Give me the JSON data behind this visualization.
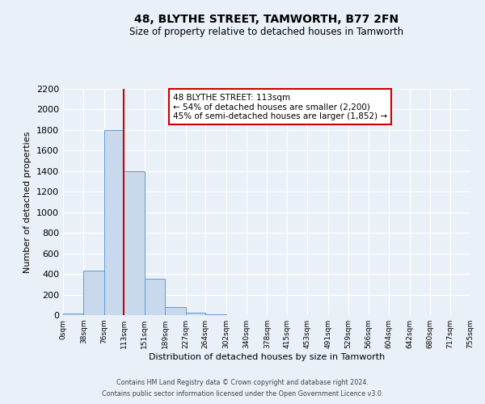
{
  "title": "48, BLYTHE STREET, TAMWORTH, B77 2FN",
  "subtitle": "Size of property relative to detached houses in Tamworth",
  "xlabel": "Distribution of detached houses by size in Tamworth",
  "ylabel": "Number of detached properties",
  "bin_labels": [
    "0sqm",
    "38sqm",
    "76sqm",
    "113sqm",
    "151sqm",
    "189sqm",
    "227sqm",
    "264sqm",
    "302sqm",
    "340sqm",
    "378sqm",
    "415sqm",
    "453sqm",
    "491sqm",
    "529sqm",
    "566sqm",
    "604sqm",
    "642sqm",
    "680sqm",
    "717sqm",
    "755sqm"
  ],
  "bin_edges": [
    0,
    38,
    76,
    113,
    151,
    189,
    227,
    264,
    302,
    340,
    378,
    415,
    453,
    491,
    529,
    566,
    604,
    642,
    680,
    717,
    755
  ],
  "bar_heights": [
    15,
    430,
    1800,
    1400,
    350,
    80,
    25,
    10,
    0,
    0,
    0,
    0,
    0,
    0,
    0,
    0,
    0,
    0,
    0,
    0
  ],
  "bar_color": "#c9d9ed",
  "bar_edge_color": "#5b9bd5",
  "vline_x": 113,
  "vline_color": "#cc0000",
  "ylim": [
    0,
    2200
  ],
  "yticks": [
    0,
    200,
    400,
    600,
    800,
    1000,
    1200,
    1400,
    1600,
    1800,
    2000,
    2200
  ],
  "annotation_box_text": "48 BLYTHE STREET: 113sqm\n← 54% of detached houses are smaller (2,200)\n45% of semi-detached houses are larger (1,852) →",
  "footer_line1": "Contains HM Land Registry data © Crown copyright and database right 2024.",
  "footer_line2": "Contains public sector information licensed under the Open Government Licence v3.0.",
  "background_color": "#eaf0f8",
  "plot_background_color": "#eaf0f8",
  "grid_color": "#ffffff"
}
